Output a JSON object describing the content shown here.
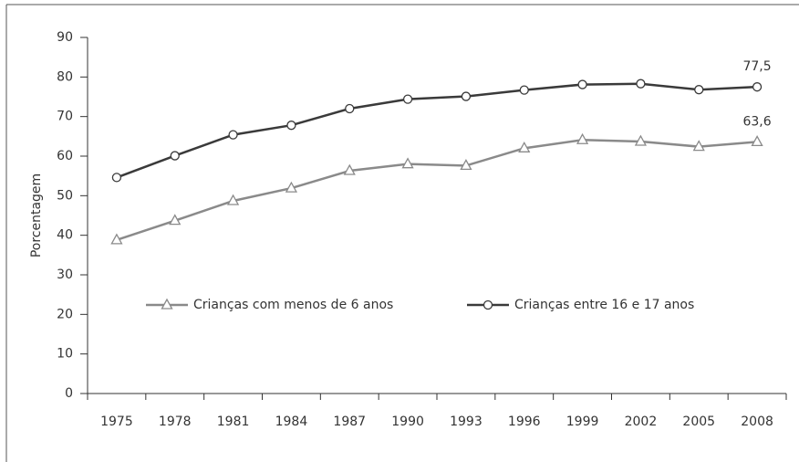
{
  "chart_data": {
    "type": "line",
    "y_label": "Porcentagem",
    "categories": [
      "1975",
      "1978",
      "1981",
      "1984",
      "1987",
      "1990",
      "1993",
      "1996",
      "1999",
      "2002",
      "2005",
      "2008"
    ],
    "series": [
      {
        "name": "Crianças com menos de 6 anos",
        "color": "#8a8a8a",
        "marker": "triangle",
        "values": [
          38.8,
          43.7,
          48.7,
          51.9,
          56.3,
          58.0,
          57.6,
          62.0,
          64.1,
          63.7,
          62.4,
          63.6
        ],
        "value_labels": [
          null,
          null,
          null,
          null,
          null,
          null,
          null,
          null,
          null,
          null,
          null,
          "63,6"
        ]
      },
      {
        "name": "Crianças entre 16 e 17 anos",
        "color": "#3a3a3a",
        "marker": "circle",
        "values": [
          54.6,
          60.1,
          65.4,
          67.8,
          72.0,
          74.4,
          75.1,
          76.7,
          78.1,
          78.3,
          76.8,
          77.5
        ],
        "value_labels": [
          null,
          null,
          null,
          null,
          null,
          null,
          null,
          null,
          null,
          null,
          null,
          "77,5"
        ]
      }
    ],
    "ylim": [
      0,
      90
    ],
    "yticks": [
      0,
      10,
      20,
      30,
      40,
      50,
      60,
      70,
      80,
      90
    ],
    "grid": false,
    "legend": "inside"
  }
}
